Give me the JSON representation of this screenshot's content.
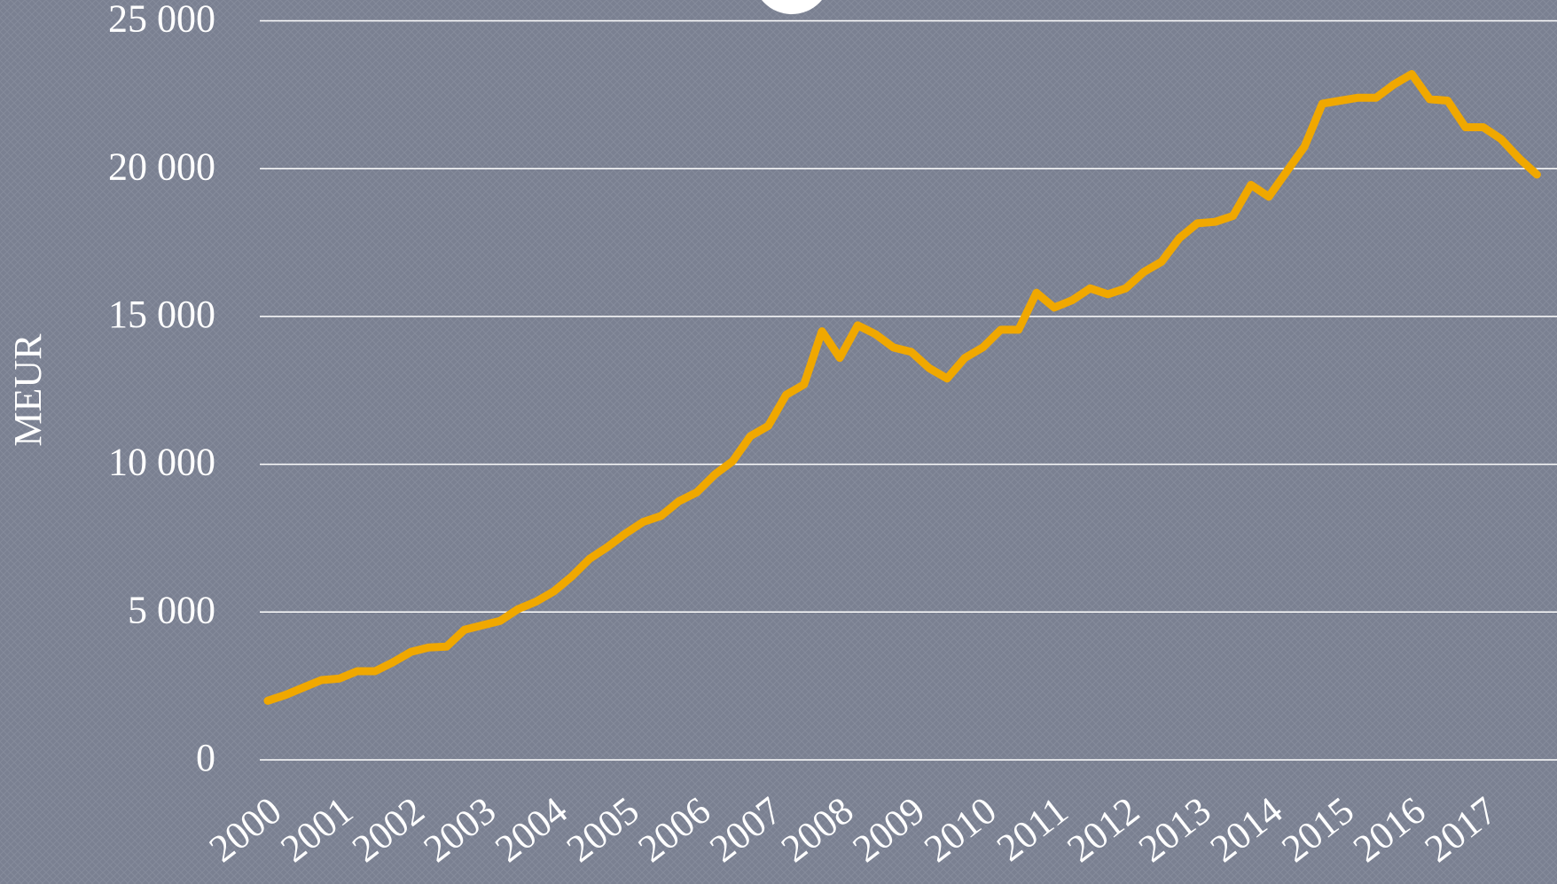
{
  "chart_data": {
    "type": "line",
    "ylabel": "MEUR",
    "categories": [
      "2000",
      null,
      null,
      null,
      "2001",
      null,
      null,
      null,
      "2002",
      null,
      null,
      null,
      "2003",
      null,
      null,
      null,
      "2004",
      null,
      null,
      null,
      "2005",
      null,
      null,
      null,
      "2006",
      null,
      null,
      null,
      "2007",
      null,
      null,
      null,
      "2008",
      null,
      null,
      null,
      "2009",
      null,
      null,
      null,
      "2010",
      null,
      null,
      null,
      "2011",
      null,
      null,
      null,
      "2012",
      null,
      null,
      null,
      "2013",
      null,
      null,
      null,
      "2014",
      null,
      null,
      null,
      "2015",
      null,
      null,
      null,
      "2016",
      null,
      null,
      null,
      "2017",
      null,
      null,
      null
    ],
    "series": [
      {
        "color": "#f0a800",
        "values": [
          2000,
          2200,
          2450,
          2700,
          2750,
          3000,
          3000,
          3300,
          3650,
          3800,
          3830,
          4400,
          4550,
          4700,
          5100,
          5350,
          5700,
          6200,
          6800,
          7200,
          7650,
          8050,
          8250,
          8750,
          9050,
          9650,
          10100,
          10950,
          11300,
          12350,
          12700,
          14500,
          13600,
          14700,
          14400,
          13950,
          13800,
          13250,
          12900,
          13600,
          13950,
          14550,
          14550,
          15800,
          15300,
          15550,
          15950,
          15750,
          15950,
          16500,
          16850,
          17650,
          18150,
          18200,
          18400,
          19450,
          19050,
          19900,
          20750,
          22200,
          22300,
          22400,
          22400,
          22850,
          23200,
          22350,
          22300,
          21400,
          21400,
          21000,
          20350,
          19800
        ]
      }
    ],
    "ylim": [
      0,
      25000
    ],
    "yticks": [
      0,
      {
        "value": 5000,
        "label": "5 000"
      },
      {
        "value": 10000,
        "label": "10 000"
      },
      {
        "value": 15000,
        "label": "15 000"
      },
      {
        "value": 20000,
        "label": "20 000"
      },
      {
        "value": 25000,
        "label": "25 000"
      }
    ],
    "grid": true
  }
}
